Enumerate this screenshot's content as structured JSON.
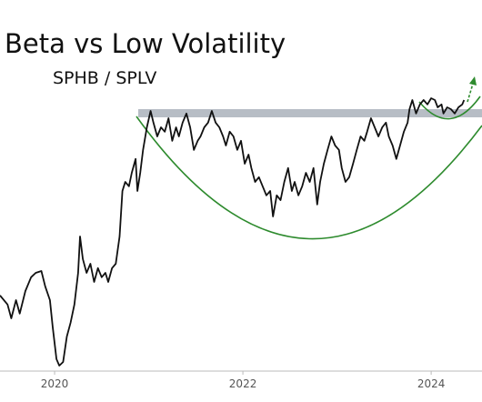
{
  "chart_data": {
    "type": "line",
    "title": "Beta vs Low Volatility",
    "subtitle": "SPHB / SPLV",
    "color": "#111111",
    "x": [
      2019.42,
      2019.5,
      2019.54,
      2019.59,
      2019.63,
      2019.69,
      2019.75,
      2019.8,
      2019.86,
      2019.9,
      2019.95,
      2019.98,
      2020.02,
      2020.05,
      2020.09,
      2020.13,
      2020.17,
      2020.21,
      2020.25,
      2020.27,
      2020.3,
      2020.34,
      2020.38,
      2020.42,
      2020.46,
      2020.5,
      2020.54,
      2020.57,
      2020.61,
      2020.65,
      2020.69,
      2020.72,
      2020.75,
      2020.79,
      2020.82,
      2020.86,
      2020.88,
      2020.91,
      2020.94,
      2020.98,
      2021.02,
      2021.05,
      2021.09,
      2021.13,
      2021.17,
      2021.21,
      2021.25,
      2021.29,
      2021.32,
      2021.36,
      2021.4,
      2021.44,
      2021.48,
      2021.52,
      2021.55,
      2021.59,
      2021.63,
      2021.67,
      2021.71,
      2021.75,
      2021.79,
      2021.82,
      2021.86,
      2021.9,
      2021.94,
      2021.98,
      2022.02,
      2022.06,
      2022.09,
      2022.13,
      2022.17,
      2022.21,
      2022.25,
      2022.29,
      2022.32,
      2022.36,
      2022.4,
      2022.44,
      2022.48,
      2022.52,
      2022.55,
      2022.59,
      2022.63,
      2022.67,
      2022.71,
      2022.75,
      2022.79,
      2022.82,
      2022.86,
      2022.9,
      2022.94,
      2022.98,
      2023.02,
      2023.05,
      2023.09,
      2023.13,
      2023.17,
      2023.21,
      2023.25,
      2023.29,
      2023.32,
      2023.36,
      2023.4,
      2023.44,
      2023.48,
      2023.52,
      2023.55,
      2023.59,
      2023.63,
      2023.67,
      2023.71,
      2023.75,
      2023.77,
      2023.8,
      2023.84,
      2023.88,
      2023.92,
      2023.96,
      2024,
      2024.04,
      2024.07,
      2024.11,
      2024.13,
      2024.17,
      2024.21,
      2024.25,
      2024.29,
      2024.33,
      2024.35
    ],
    "values": [
      20.8,
      18.3,
      14.5,
      19.5,
      15.8,
      22,
      25.8,
      27,
      27.5,
      23.3,
      19.5,
      12,
      3.3,
      1.5,
      2.5,
      9.5,
      13.3,
      18.3,
      27,
      37,
      30.8,
      27,
      29.5,
      24.5,
      28.3,
      25.8,
      27,
      24.5,
      28.3,
      29.5,
      37,
      49.5,
      52,
      50.8,
      54.5,
      58.3,
      49.5,
      54.5,
      60.8,
      67,
      71.5,
      68.3,
      64.5,
      67,
      65.8,
      69.5,
      63.3,
      67,
      64.5,
      68.3,
      70.8,
      67,
      60.8,
      63.3,
      64.5,
      67,
      68.3,
      71.5,
      68.3,
      67,
      64.5,
      62,
      65.8,
      64.5,
      60.8,
      63.3,
      57,
      59.5,
      55.8,
      52,
      53.3,
      50.8,
      48.3,
      49.5,
      42.5,
      48.3,
      47,
      52,
      55.8,
      49.5,
      52,
      48.3,
      50.8,
      54.5,
      52,
      55.8,
      45.8,
      52,
      57,
      60.8,
      64.5,
      62,
      60.8,
      55.8,
      52,
      53.3,
      57,
      60.8,
      64.5,
      63.3,
      65.8,
      69.5,
      67,
      64.5,
      67,
      68.3,
      64.5,
      62,
      58.3,
      62,
      65.8,
      68.3,
      72,
      74.5,
      70.8,
      73.3,
      74.5,
      73.3,
      75,
      74.5,
      72.5,
      73.3,
      70.8,
      72.5,
      72,
      70.8,
      72.5,
      73.3,
      74.5
    ],
    "xlim": [
      2019.42,
      2024.54
    ],
    "xticks": [
      2020,
      2022,
      2024
    ],
    "ylim": [
      0,
      102
    ]
  }
}
